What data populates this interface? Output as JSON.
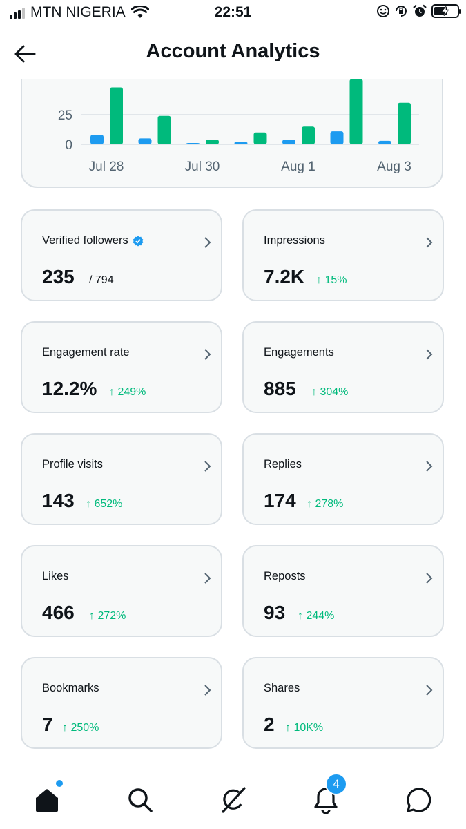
{
  "status_bar": {
    "carrier": "MTN NIGERIA",
    "time": "22:51",
    "icons": [
      "signal-icon",
      "wifi-icon",
      "face-icon",
      "rotation-lock-icon",
      "alarm-icon",
      "battery-icon"
    ],
    "battery_charging": true,
    "battery_level": 0.6
  },
  "header": {
    "title": "Account Analytics",
    "back_icon": "back-arrow-icon"
  },
  "chart_data": {
    "type": "bar",
    "categories": [
      "Jul 28",
      "Jul 29",
      "Jul 30",
      "Jul 31",
      "Aug 1",
      "Aug 2",
      "Aug 3"
    ],
    "x_tick_labels": [
      "Jul 28",
      "Jul 30",
      "Aug 1",
      "Aug 3"
    ],
    "y_tick_labels": [
      "0",
      "25"
    ],
    "series": [
      {
        "color": "#1d9bf0",
        "values": [
          8,
          5,
          1,
          2,
          4,
          11,
          3
        ]
      },
      {
        "color": "#00ba7c",
        "values": [
          48,
          24,
          4,
          10,
          15,
          55,
          35
        ]
      }
    ],
    "ylim": [
      0,
      55
    ],
    "grid": true
  },
  "cards": [
    {
      "label": "Verified followers",
      "value": "235",
      "sub": "/ 794",
      "verified": true
    },
    {
      "label": "Impressions",
      "value": "7.2K",
      "change": "↑ 15%"
    },
    {
      "label": "Engagement rate",
      "value": "12.2%",
      "change": "↑ 249%"
    },
    {
      "label": "Engagements",
      "value": "885",
      "change": "↑ 304%"
    },
    {
      "label": "Profile visits",
      "value": "143",
      "change": "↑ 652%"
    },
    {
      "label": "Replies",
      "value": "174",
      "change": "↑ 278%"
    },
    {
      "label": "Likes",
      "value": "466",
      "change": "↑ 272%"
    },
    {
      "label": "Reposts",
      "value": "93",
      "change": "↑ 244%"
    },
    {
      "label": "Bookmarks",
      "value": "7",
      "change": "↑ 250%"
    },
    {
      "label": "Shares",
      "value": "2",
      "change": "↑ 10K%"
    }
  ],
  "bottom_nav": {
    "items": [
      "home-icon",
      "search-icon",
      "grok-icon",
      "notifications-icon",
      "messages-icon"
    ],
    "notification_count": "4",
    "colors": {
      "accent": "#1d9bf0",
      "positive": "#00ba7c"
    }
  }
}
